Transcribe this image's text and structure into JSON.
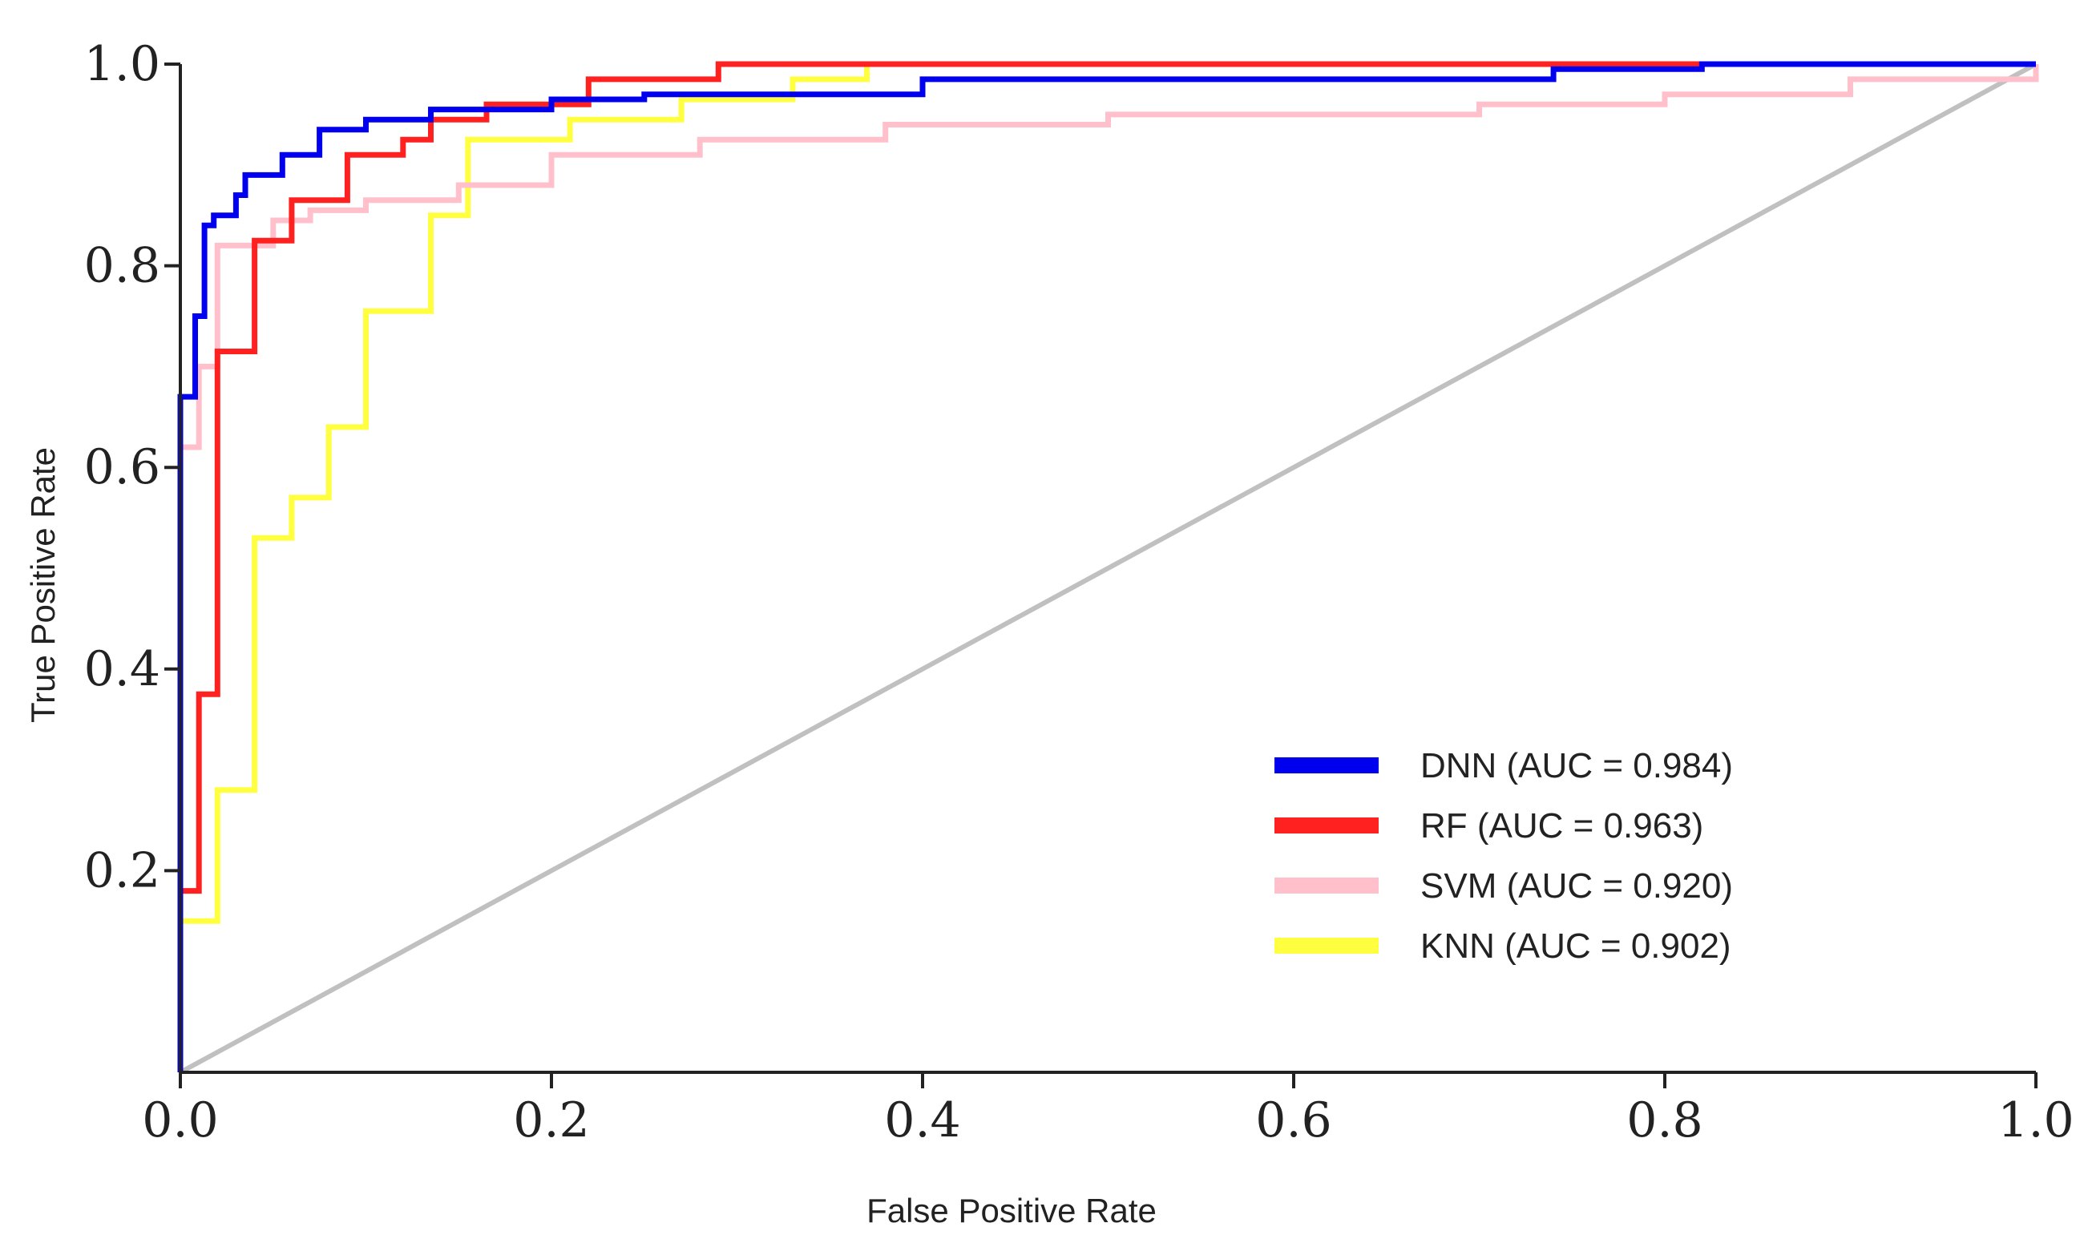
{
  "chart_data": {
    "type": "line",
    "title": "",
    "xlabel": "False Positive Rate",
    "ylabel": "True Positive Rate",
    "xlim": [
      0,
      1
    ],
    "ylim": [
      0,
      1
    ],
    "x_ticks": [
      {
        "value": 0.0,
        "label": "0.0"
      },
      {
        "value": 0.2,
        "label": "0.2"
      },
      {
        "value": 0.4,
        "label": "0.4"
      },
      {
        "value": 0.6,
        "label": "0.6"
      },
      {
        "value": 0.8,
        "label": "0.8"
      },
      {
        "value": 1.0,
        "label": "1.0"
      }
    ],
    "y_ticks": [
      {
        "value": 0.2,
        "label": "0.2"
      },
      {
        "value": 0.4,
        "label": "0.4"
      },
      {
        "value": 0.6,
        "label": "0.6"
      },
      {
        "value": 0.8,
        "label": "0.8"
      },
      {
        "value": 1.0,
        "label": "1.0"
      }
    ],
    "legend_position": "bottom-right",
    "reference_line": {
      "name": "chance",
      "color": "#c0c0c0",
      "points": [
        [
          0,
          0
        ],
        [
          1,
          1
        ]
      ]
    },
    "series": [
      {
        "name": "KNN",
        "label": "KNN  (AUC = 0.902)",
        "auc": 0.902,
        "color": "#ffff40",
        "points": [
          [
            0,
            0
          ],
          [
            0,
            0.15
          ],
          [
            0.02,
            0.15
          ],
          [
            0.02,
            0.28
          ],
          [
            0.04,
            0.28
          ],
          [
            0.04,
            0.53
          ],
          [
            0.06,
            0.53
          ],
          [
            0.06,
            0.57
          ],
          [
            0.08,
            0.57
          ],
          [
            0.08,
            0.64
          ],
          [
            0.1,
            0.64
          ],
          [
            0.1,
            0.755
          ],
          [
            0.135,
            0.755
          ],
          [
            0.135,
            0.85
          ],
          [
            0.155,
            0.85
          ],
          [
            0.155,
            0.925
          ],
          [
            0.21,
            0.925
          ],
          [
            0.21,
            0.945
          ],
          [
            0.27,
            0.945
          ],
          [
            0.27,
            0.965
          ],
          [
            0.33,
            0.965
          ],
          [
            0.33,
            0.985
          ],
          [
            0.37,
            0.985
          ],
          [
            0.37,
            1.0
          ],
          [
            1.0,
            1.0
          ]
        ]
      },
      {
        "name": "SVM",
        "label": "SVM  (AUC = 0.920)",
        "auc": 0.92,
        "color": "#ffc0cb",
        "points": [
          [
            0,
            0
          ],
          [
            0,
            0.62
          ],
          [
            0.01,
            0.62
          ],
          [
            0.01,
            0.7
          ],
          [
            0.02,
            0.7
          ],
          [
            0.02,
            0.82
          ],
          [
            0.05,
            0.82
          ],
          [
            0.05,
            0.845
          ],
          [
            0.07,
            0.845
          ],
          [
            0.07,
            0.855
          ],
          [
            0.1,
            0.855
          ],
          [
            0.1,
            0.865
          ],
          [
            0.15,
            0.865
          ],
          [
            0.15,
            0.88
          ],
          [
            0.2,
            0.88
          ],
          [
            0.2,
            0.91
          ],
          [
            0.28,
            0.91
          ],
          [
            0.28,
            0.925
          ],
          [
            0.38,
            0.925
          ],
          [
            0.38,
            0.94
          ],
          [
            0.5,
            0.94
          ],
          [
            0.5,
            0.95
          ],
          [
            0.7,
            0.95
          ],
          [
            0.7,
            0.96
          ],
          [
            0.8,
            0.96
          ],
          [
            0.8,
            0.97
          ],
          [
            0.9,
            0.97
          ],
          [
            0.9,
            0.985
          ],
          [
            1.0,
            0.985
          ],
          [
            1.0,
            1.0
          ]
        ]
      },
      {
        "name": "RF",
        "label": "RF  (AUC = 0.963)",
        "auc": 0.963,
        "color": "#ff2020",
        "points": [
          [
            0,
            0
          ],
          [
            0,
            0.18
          ],
          [
            0.01,
            0.18
          ],
          [
            0.01,
            0.375
          ],
          [
            0.02,
            0.375
          ],
          [
            0.02,
            0.715
          ],
          [
            0.04,
            0.715
          ],
          [
            0.04,
            0.825
          ],
          [
            0.06,
            0.825
          ],
          [
            0.06,
            0.865
          ],
          [
            0.09,
            0.865
          ],
          [
            0.09,
            0.91
          ],
          [
            0.12,
            0.91
          ],
          [
            0.12,
            0.925
          ],
          [
            0.135,
            0.925
          ],
          [
            0.135,
            0.945
          ],
          [
            0.165,
            0.945
          ],
          [
            0.165,
            0.96
          ],
          [
            0.22,
            0.96
          ],
          [
            0.22,
            0.985
          ],
          [
            0.29,
            0.985
          ],
          [
            0.29,
            1.0
          ],
          [
            0.82,
            1.0
          ]
        ]
      },
      {
        "name": "DNN",
        "label": "DNN  (AUC = 0.984)",
        "auc": 0.984,
        "color": "#0000ee",
        "points": [
          [
            0,
            0
          ],
          [
            0,
            0.67
          ],
          [
            0.008,
            0.67
          ],
          [
            0.008,
            0.75
          ],
          [
            0.013,
            0.75
          ],
          [
            0.013,
            0.84
          ],
          [
            0.018,
            0.84
          ],
          [
            0.018,
            0.85
          ],
          [
            0.03,
            0.85
          ],
          [
            0.03,
            0.87
          ],
          [
            0.035,
            0.87
          ],
          [
            0.035,
            0.89
          ],
          [
            0.055,
            0.89
          ],
          [
            0.055,
            0.91
          ],
          [
            0.075,
            0.91
          ],
          [
            0.075,
            0.935
          ],
          [
            0.1,
            0.935
          ],
          [
            0.1,
            0.945
          ],
          [
            0.135,
            0.945
          ],
          [
            0.135,
            0.955
          ],
          [
            0.2,
            0.955
          ],
          [
            0.2,
            0.965
          ],
          [
            0.25,
            0.965
          ],
          [
            0.25,
            0.97
          ],
          [
            0.4,
            0.97
          ],
          [
            0.4,
            0.985
          ],
          [
            0.74,
            0.985
          ],
          [
            0.74,
            0.995
          ],
          [
            0.82,
            0.995
          ],
          [
            0.82,
            1.0
          ],
          [
            1.0,
            1.0
          ]
        ]
      }
    ],
    "legend_order": [
      "DNN",
      "RF",
      "SVM",
      "KNN"
    ]
  }
}
